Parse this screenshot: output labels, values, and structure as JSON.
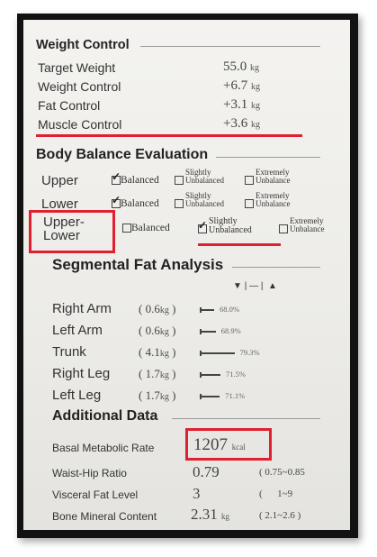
{
  "weight_control": {
    "title": "Weight Control",
    "rows": [
      {
        "label": "Target Weight",
        "value": "55.0",
        "unit": "kg"
      },
      {
        "label": "Weight Control",
        "value": "+6.7",
        "unit": "kg"
      },
      {
        "label": "Fat Control",
        "value": "+3.1",
        "unit": "kg"
      },
      {
        "label": "Muscle Control",
        "value": "+3.6",
        "unit": "kg"
      }
    ]
  },
  "body_balance": {
    "title": "Body Balance Evaluation",
    "options": {
      "balanced": "Balanced",
      "slightly": [
        "Slightly",
        "Unbalanced"
      ],
      "extremely": [
        "Extremely",
        "Unbalance"
      ]
    },
    "rows": [
      {
        "label": "Upper",
        "selected": "balanced"
      },
      {
        "label": "Lower",
        "selected": "balanced"
      },
      {
        "label_lines": [
          "Upper-",
          "Lower"
        ],
        "selected": "slightly"
      }
    ]
  },
  "segmental_fat": {
    "title": "Segmental Fat Analysis",
    "legend": {
      "low": "▼",
      "sep": "|",
      "mid": "—",
      "high": "▲"
    },
    "rows": [
      {
        "label": "Right Arm",
        "value": "0.6",
        "unit": "kg",
        "percent": "68.0%",
        "pct_value": 68.0
      },
      {
        "label": "Left Arm",
        "value": "0.6",
        "unit": "kg",
        "percent": "68.9%",
        "pct_value": 68.9
      },
      {
        "label": "Trunk",
        "value": "4.1",
        "unit": "kg",
        "percent": "79.3%",
        "pct_value": 79.3
      },
      {
        "label": "Right Leg",
        "value": "1.7",
        "unit": "kg",
        "percent": "71.5%",
        "pct_value": 71.5
      },
      {
        "label": "Left Leg",
        "value": "1.7",
        "unit": "kg",
        "percent": "71.1%",
        "pct_value": 71.1
      }
    ]
  },
  "additional": {
    "title": "Additional Data",
    "rows": [
      {
        "label": "Basal Metabolic Rate",
        "value": "1207",
        "unit": "kcal",
        "range": ""
      },
      {
        "label": "Waist-Hip Ratio",
        "value": "0.79",
        "unit": "",
        "range": "( 0.75~0.85"
      },
      {
        "label": "Visceral Fat Level",
        "value": "3",
        "unit": "",
        "range": "(      1~9"
      },
      {
        "label": "Bone Mineral Content",
        "value": "2.31",
        "unit": "kg",
        "range": "( 2.1~2.6 )"
      }
    ]
  },
  "colors": {
    "highlight": "#e0202f",
    "frame": "#121212"
  }
}
